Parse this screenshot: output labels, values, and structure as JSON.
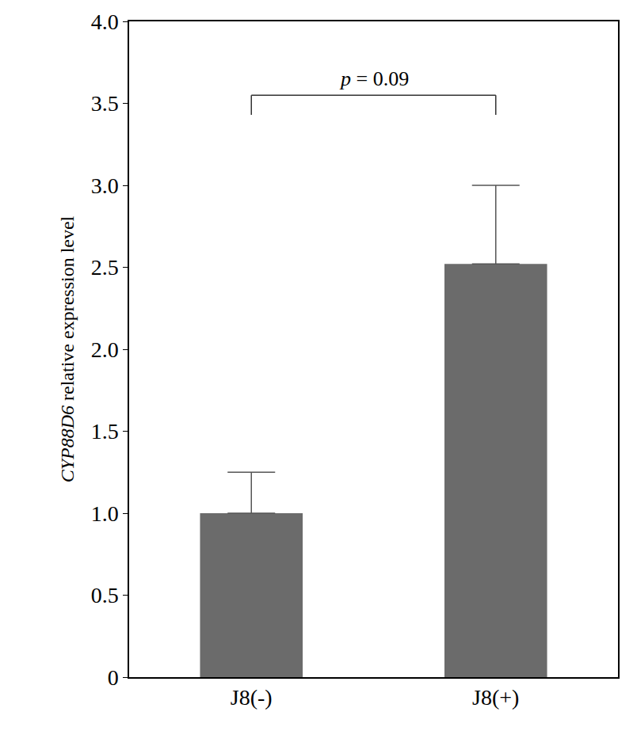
{
  "chart_data": {
    "type": "bar",
    "y_label": "CYP88D6 relative expression level",
    "categories": [
      "J8(-)",
      "J8(+)"
    ],
    "values": [
      1.0,
      2.52
    ],
    "errors": [
      0.25,
      0.48
    ],
    "color": "#6b6b6b",
    "ylim": [
      0,
      4.0
    ],
    "yticks": [
      0,
      0.5,
      {
        "value": 1,
        "label": "1.0"
      },
      1.5,
      {
        "value": 2,
        "label": "2.0"
      },
      2.5,
      {
        "value": 3,
        "label": "3.0"
      },
      3.5,
      {
        "value": 4,
        "label": "4.0"
      }
    ],
    "annotations": [
      {
        "text": "p = 0.09",
        "between": [
          "J8(-)",
          "J8(+)"
        ]
      }
    ],
    "grid": false
  }
}
